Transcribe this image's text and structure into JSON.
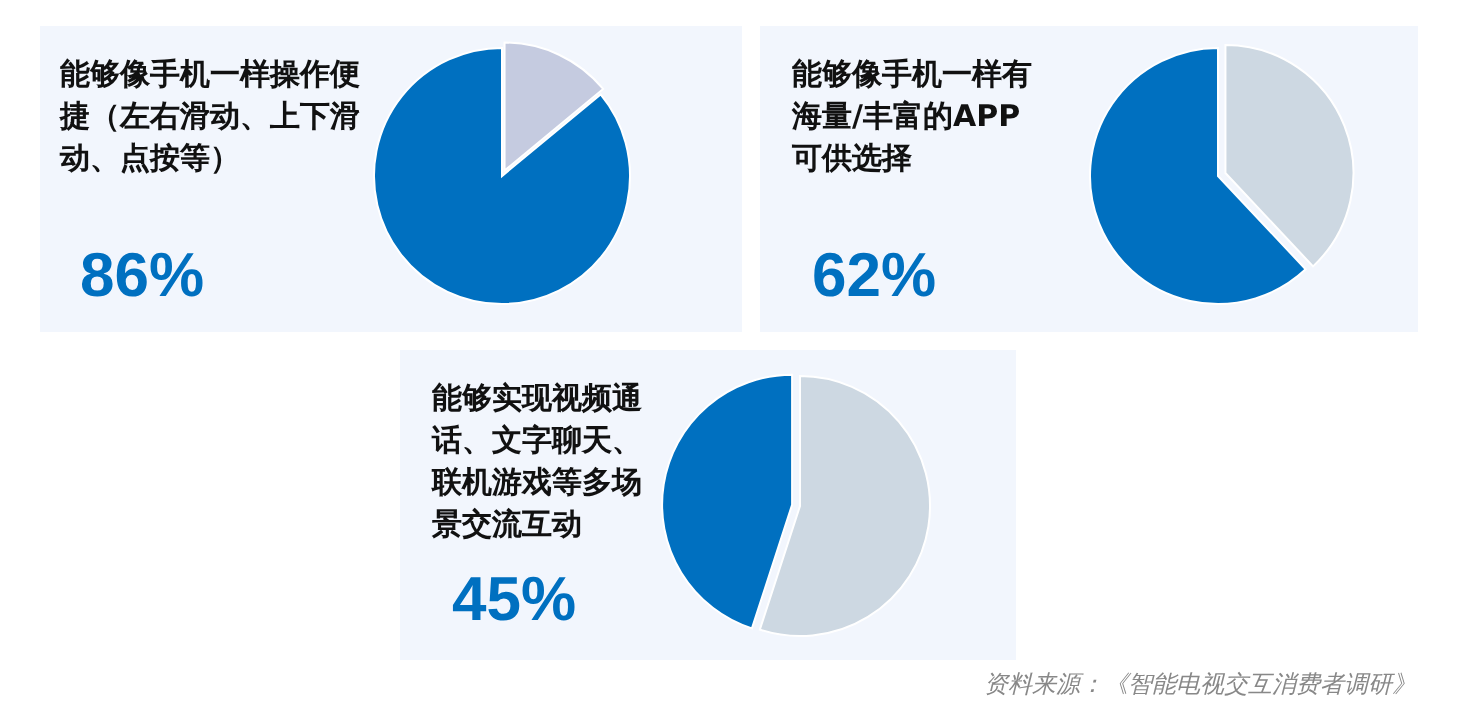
{
  "chart_data": [
    {
      "type": "pie",
      "title": "能够像手机一样操作便捷（左右滑动、上下滑动、点按等）",
      "categories": [
        null,
        null
      ],
      "values": [
        14,
        86
      ],
      "colors": [
        "#c5cbe0",
        "#0070c0"
      ],
      "value_labels": [
        null,
        "86%"
      ]
    },
    {
      "type": "pie",
      "title": "能够像手机一样有海量/丰富的APP可供选择",
      "categories": [
        null,
        null
      ],
      "values": [
        38,
        62
      ],
      "colors": [
        "#cdd8e2",
        "#0070c0"
      ],
      "value_labels": [
        null,
        "62%"
      ]
    },
    {
      "type": "pie",
      "title": "能够实现视频通话、文字聊天、联机游戏等多场景交流互动",
      "categories": [
        null,
        null
      ],
      "values": [
        55,
        45
      ],
      "colors": [
        "#cdd8e2",
        "#0070c0"
      ],
      "value_labels": [
        null,
        "45%"
      ],
      "annotations": [
        "资料来源：《智能电视交互消费者调研》"
      ]
    }
  ]
}
